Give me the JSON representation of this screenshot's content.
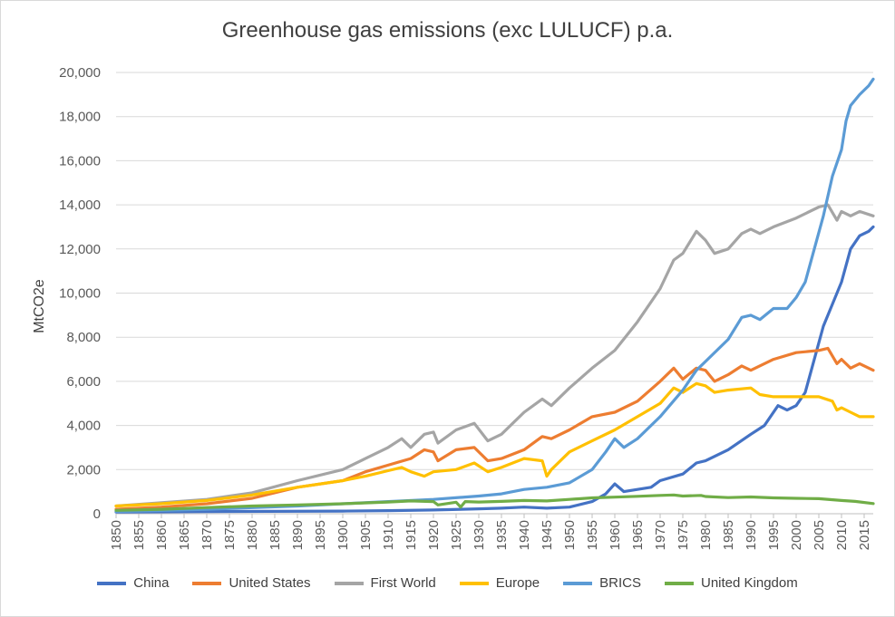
{
  "chart_data": {
    "type": "line",
    "title": "Greenhouse gas emissions (exc LULUCF) p.a.",
    "xlabel": "",
    "ylabel": "MtCO2e",
    "xlim": [
      1850,
      2017
    ],
    "ylim": [
      0,
      20000
    ],
    "yticks": [
      0,
      2000,
      4000,
      6000,
      8000,
      10000,
      12000,
      14000,
      16000,
      18000,
      20000
    ],
    "ytick_labels": [
      "0",
      "2,000",
      "4,000",
      "6,000",
      "8,000",
      "10,000",
      "12,000",
      "14,000",
      "16,000",
      "18,000",
      "20,000"
    ],
    "xticks": [
      1850,
      1855,
      1860,
      1865,
      1870,
      1875,
      1880,
      1885,
      1890,
      1895,
      1900,
      1905,
      1910,
      1915,
      1920,
      1925,
      1930,
      1935,
      1940,
      1945,
      1950,
      1955,
      1960,
      1965,
      1970,
      1975,
      1980,
      1985,
      1990,
      1995,
      2000,
      2005,
      2010,
      2015
    ],
    "xtick_labels": [
      "1850",
      "1855",
      "1860",
      "1865",
      "1870",
      "1875",
      "1880",
      "1885",
      "1890",
      "1895",
      "1900",
      "1905",
      "1910",
      "1915",
      "1920",
      "1925",
      "1930",
      "1935",
      "1940",
      "1945",
      "1950",
      "1955",
      "1960",
      "1965",
      "1970",
      "1975",
      "1980",
      "1985",
      "1990",
      "1995",
      "2000",
      "2005",
      "2010",
      "2015"
    ],
    "grid": "horizontal",
    "legend_position": "bottom",
    "series": [
      {
        "name": "China",
        "color": "#4472c4",
        "points": [
          [
            1850,
            80
          ],
          [
            1870,
            100
          ],
          [
            1900,
            120
          ],
          [
            1910,
            140
          ],
          [
            1920,
            170
          ],
          [
            1930,
            220
          ],
          [
            1935,
            250
          ],
          [
            1940,
            300
          ],
          [
            1945,
            250
          ],
          [
            1950,
            300
          ],
          [
            1955,
            550
          ],
          [
            1958,
            900
          ],
          [
            1960,
            1350
          ],
          [
            1962,
            1000
          ],
          [
            1965,
            1100
          ],
          [
            1968,
            1200
          ],
          [
            1970,
            1500
          ],
          [
            1975,
            1800
          ],
          [
            1978,
            2300
          ],
          [
            1980,
            2400
          ],
          [
            1985,
            2900
          ],
          [
            1990,
            3600
          ],
          [
            1993,
            4000
          ],
          [
            1996,
            4900
          ],
          [
            1998,
            4700
          ],
          [
            2000,
            4900
          ],
          [
            2002,
            5500
          ],
          [
            2004,
            7000
          ],
          [
            2006,
            8500
          ],
          [
            2008,
            9500
          ],
          [
            2010,
            10500
          ],
          [
            2012,
            12000
          ],
          [
            2014,
            12600
          ],
          [
            2016,
            12800
          ],
          [
            2017,
            13000
          ]
        ]
      },
      {
        "name": "United States",
        "color": "#ed7d31",
        "points": [
          [
            1850,
            200
          ],
          [
            1860,
            300
          ],
          [
            1870,
            450
          ],
          [
            1880,
            700
          ],
          [
            1890,
            1200
          ],
          [
            1900,
            1500
          ],
          [
            1905,
            1900
          ],
          [
            1910,
            2200
          ],
          [
            1915,
            2500
          ],
          [
            1918,
            2900
          ],
          [
            1920,
            2800
          ],
          [
            1921,
            2400
          ],
          [
            1925,
            2900
          ],
          [
            1929,
            3000
          ],
          [
            1932,
            2400
          ],
          [
            1935,
            2500
          ],
          [
            1940,
            2900
          ],
          [
            1944,
            3500
          ],
          [
            1946,
            3400
          ],
          [
            1950,
            3800
          ],
          [
            1955,
            4400
          ],
          [
            1960,
            4600
          ],
          [
            1965,
            5100
          ],
          [
            1970,
            6000
          ],
          [
            1973,
            6600
          ],
          [
            1975,
            6100
          ],
          [
            1978,
            6600
          ],
          [
            1980,
            6500
          ],
          [
            1982,
            6000
          ],
          [
            1985,
            6300
          ],
          [
            1988,
            6700
          ],
          [
            1990,
            6500
          ],
          [
            1995,
            7000
          ],
          [
            2000,
            7300
          ],
          [
            2005,
            7400
          ],
          [
            2007,
            7500
          ],
          [
            2009,
            6800
          ],
          [
            2010,
            7000
          ],
          [
            2012,
            6600
          ],
          [
            2014,
            6800
          ],
          [
            2017,
            6500
          ]
        ]
      },
      {
        "name": "First World",
        "color": "#a5a5a5",
        "points": [
          [
            1850,
            350
          ],
          [
            1860,
            500
          ],
          [
            1870,
            650
          ],
          [
            1880,
            950
          ],
          [
            1890,
            1500
          ],
          [
            1900,
            2000
          ],
          [
            1905,
            2500
          ],
          [
            1910,
            3000
          ],
          [
            1913,
            3400
          ],
          [
            1915,
            3000
          ],
          [
            1918,
            3600
          ],
          [
            1920,
            3700
          ],
          [
            1921,
            3200
          ],
          [
            1925,
            3800
          ],
          [
            1929,
            4100
          ],
          [
            1932,
            3300
          ],
          [
            1935,
            3600
          ],
          [
            1940,
            4600
          ],
          [
            1944,
            5200
          ],
          [
            1946,
            4900
          ],
          [
            1950,
            5700
          ],
          [
            1955,
            6600
          ],
          [
            1960,
            7400
          ],
          [
            1965,
            8700
          ],
          [
            1970,
            10200
          ],
          [
            1973,
            11500
          ],
          [
            1975,
            11800
          ],
          [
            1978,
            12800
          ],
          [
            1980,
            12400
          ],
          [
            1982,
            11800
          ],
          [
            1985,
            12000
          ],
          [
            1988,
            12700
          ],
          [
            1990,
            12900
          ],
          [
            1992,
            12700
          ],
          [
            1995,
            13000
          ],
          [
            2000,
            13400
          ],
          [
            2005,
            13900
          ],
          [
            2007,
            14000
          ],
          [
            2009,
            13300
          ],
          [
            2010,
            13700
          ],
          [
            2012,
            13500
          ],
          [
            2014,
            13700
          ],
          [
            2017,
            13500
          ]
        ]
      },
      {
        "name": "Europe",
        "color": "#ffc000",
        "points": [
          [
            1850,
            350
          ],
          [
            1860,
            450
          ],
          [
            1870,
            600
          ],
          [
            1880,
            850
          ],
          [
            1890,
            1200
          ],
          [
            1900,
            1500
          ],
          [
            1905,
            1700
          ],
          [
            1910,
            1950
          ],
          [
            1913,
            2100
          ],
          [
            1915,
            1900
          ],
          [
            1918,
            1700
          ],
          [
            1920,
            1900
          ],
          [
            1925,
            2000
          ],
          [
            1929,
            2300
          ],
          [
            1932,
            1900
          ],
          [
            1935,
            2100
          ],
          [
            1940,
            2500
          ],
          [
            1944,
            2400
          ],
          [
            1945,
            1700
          ],
          [
            1946,
            2000
          ],
          [
            1950,
            2800
          ],
          [
            1955,
            3300
          ],
          [
            1960,
            3800
          ],
          [
            1965,
            4400
          ],
          [
            1970,
            5000
          ],
          [
            1973,
            5700
          ],
          [
            1975,
            5500
          ],
          [
            1978,
            5900
          ],
          [
            1980,
            5800
          ],
          [
            1982,
            5500
          ],
          [
            1985,
            5600
          ],
          [
            1990,
            5700
          ],
          [
            1992,
            5400
          ],
          [
            1995,
            5300
          ],
          [
            2000,
            5300
          ],
          [
            2005,
            5300
          ],
          [
            2008,
            5100
          ],
          [
            2009,
            4700
          ],
          [
            2010,
            4800
          ],
          [
            2012,
            4600
          ],
          [
            2014,
            4400
          ],
          [
            2017,
            4400
          ]
        ]
      },
      {
        "name": "BRICS",
        "color": "#5b9bd5",
        "points": [
          [
            1850,
            100
          ],
          [
            1870,
            200
          ],
          [
            1890,
            350
          ],
          [
            1900,
            450
          ],
          [
            1910,
            550
          ],
          [
            1920,
            650
          ],
          [
            1930,
            800
          ],
          [
            1935,
            900
          ],
          [
            1940,
            1100
          ],
          [
            1945,
            1200
          ],
          [
            1950,
            1400
          ],
          [
            1955,
            2000
          ],
          [
            1958,
            2800
          ],
          [
            1960,
            3400
          ],
          [
            1962,
            3000
          ],
          [
            1965,
            3400
          ],
          [
            1970,
            4400
          ],
          [
            1975,
            5600
          ],
          [
            1978,
            6500
          ],
          [
            1980,
            6900
          ],
          [
            1985,
            7900
          ],
          [
            1988,
            8900
          ],
          [
            1990,
            9000
          ],
          [
            1992,
            8800
          ],
          [
            1995,
            9300
          ],
          [
            1998,
            9300
          ],
          [
            2000,
            9800
          ],
          [
            2002,
            10500
          ],
          [
            2004,
            12000
          ],
          [
            2006,
            13500
          ],
          [
            2008,
            15300
          ],
          [
            2010,
            16500
          ],
          [
            2011,
            17800
          ],
          [
            2012,
            18500
          ],
          [
            2014,
            19000
          ],
          [
            2016,
            19400
          ],
          [
            2017,
            19700
          ]
        ]
      },
      {
        "name": "United Kingdom",
        "color": "#70ad47",
        "points": [
          [
            1850,
            150
          ],
          [
            1860,
            200
          ],
          [
            1870,
            280
          ],
          [
            1880,
            350
          ],
          [
            1890,
            400
          ],
          [
            1900,
            450
          ],
          [
            1910,
            530
          ],
          [
            1915,
            580
          ],
          [
            1920,
            550
          ],
          [
            1921,
            400
          ],
          [
            1925,
            520
          ],
          [
            1926,
            300
          ],
          [
            1927,
            550
          ],
          [
            1930,
            530
          ],
          [
            1935,
            560
          ],
          [
            1940,
            600
          ],
          [
            1945,
            580
          ],
          [
            1950,
            650
          ],
          [
            1955,
            720
          ],
          [
            1960,
            750
          ],
          [
            1965,
            790
          ],
          [
            1970,
            830
          ],
          [
            1973,
            850
          ],
          [
            1975,
            800
          ],
          [
            1979,
            830
          ],
          [
            1980,
            780
          ],
          [
            1985,
            730
          ],
          [
            1990,
            760
          ],
          [
            1995,
            720
          ],
          [
            2000,
            700
          ],
          [
            2005,
            680
          ],
          [
            2010,
            600
          ],
          [
            2013,
            560
          ],
          [
            2017,
            460
          ]
        ]
      }
    ]
  }
}
